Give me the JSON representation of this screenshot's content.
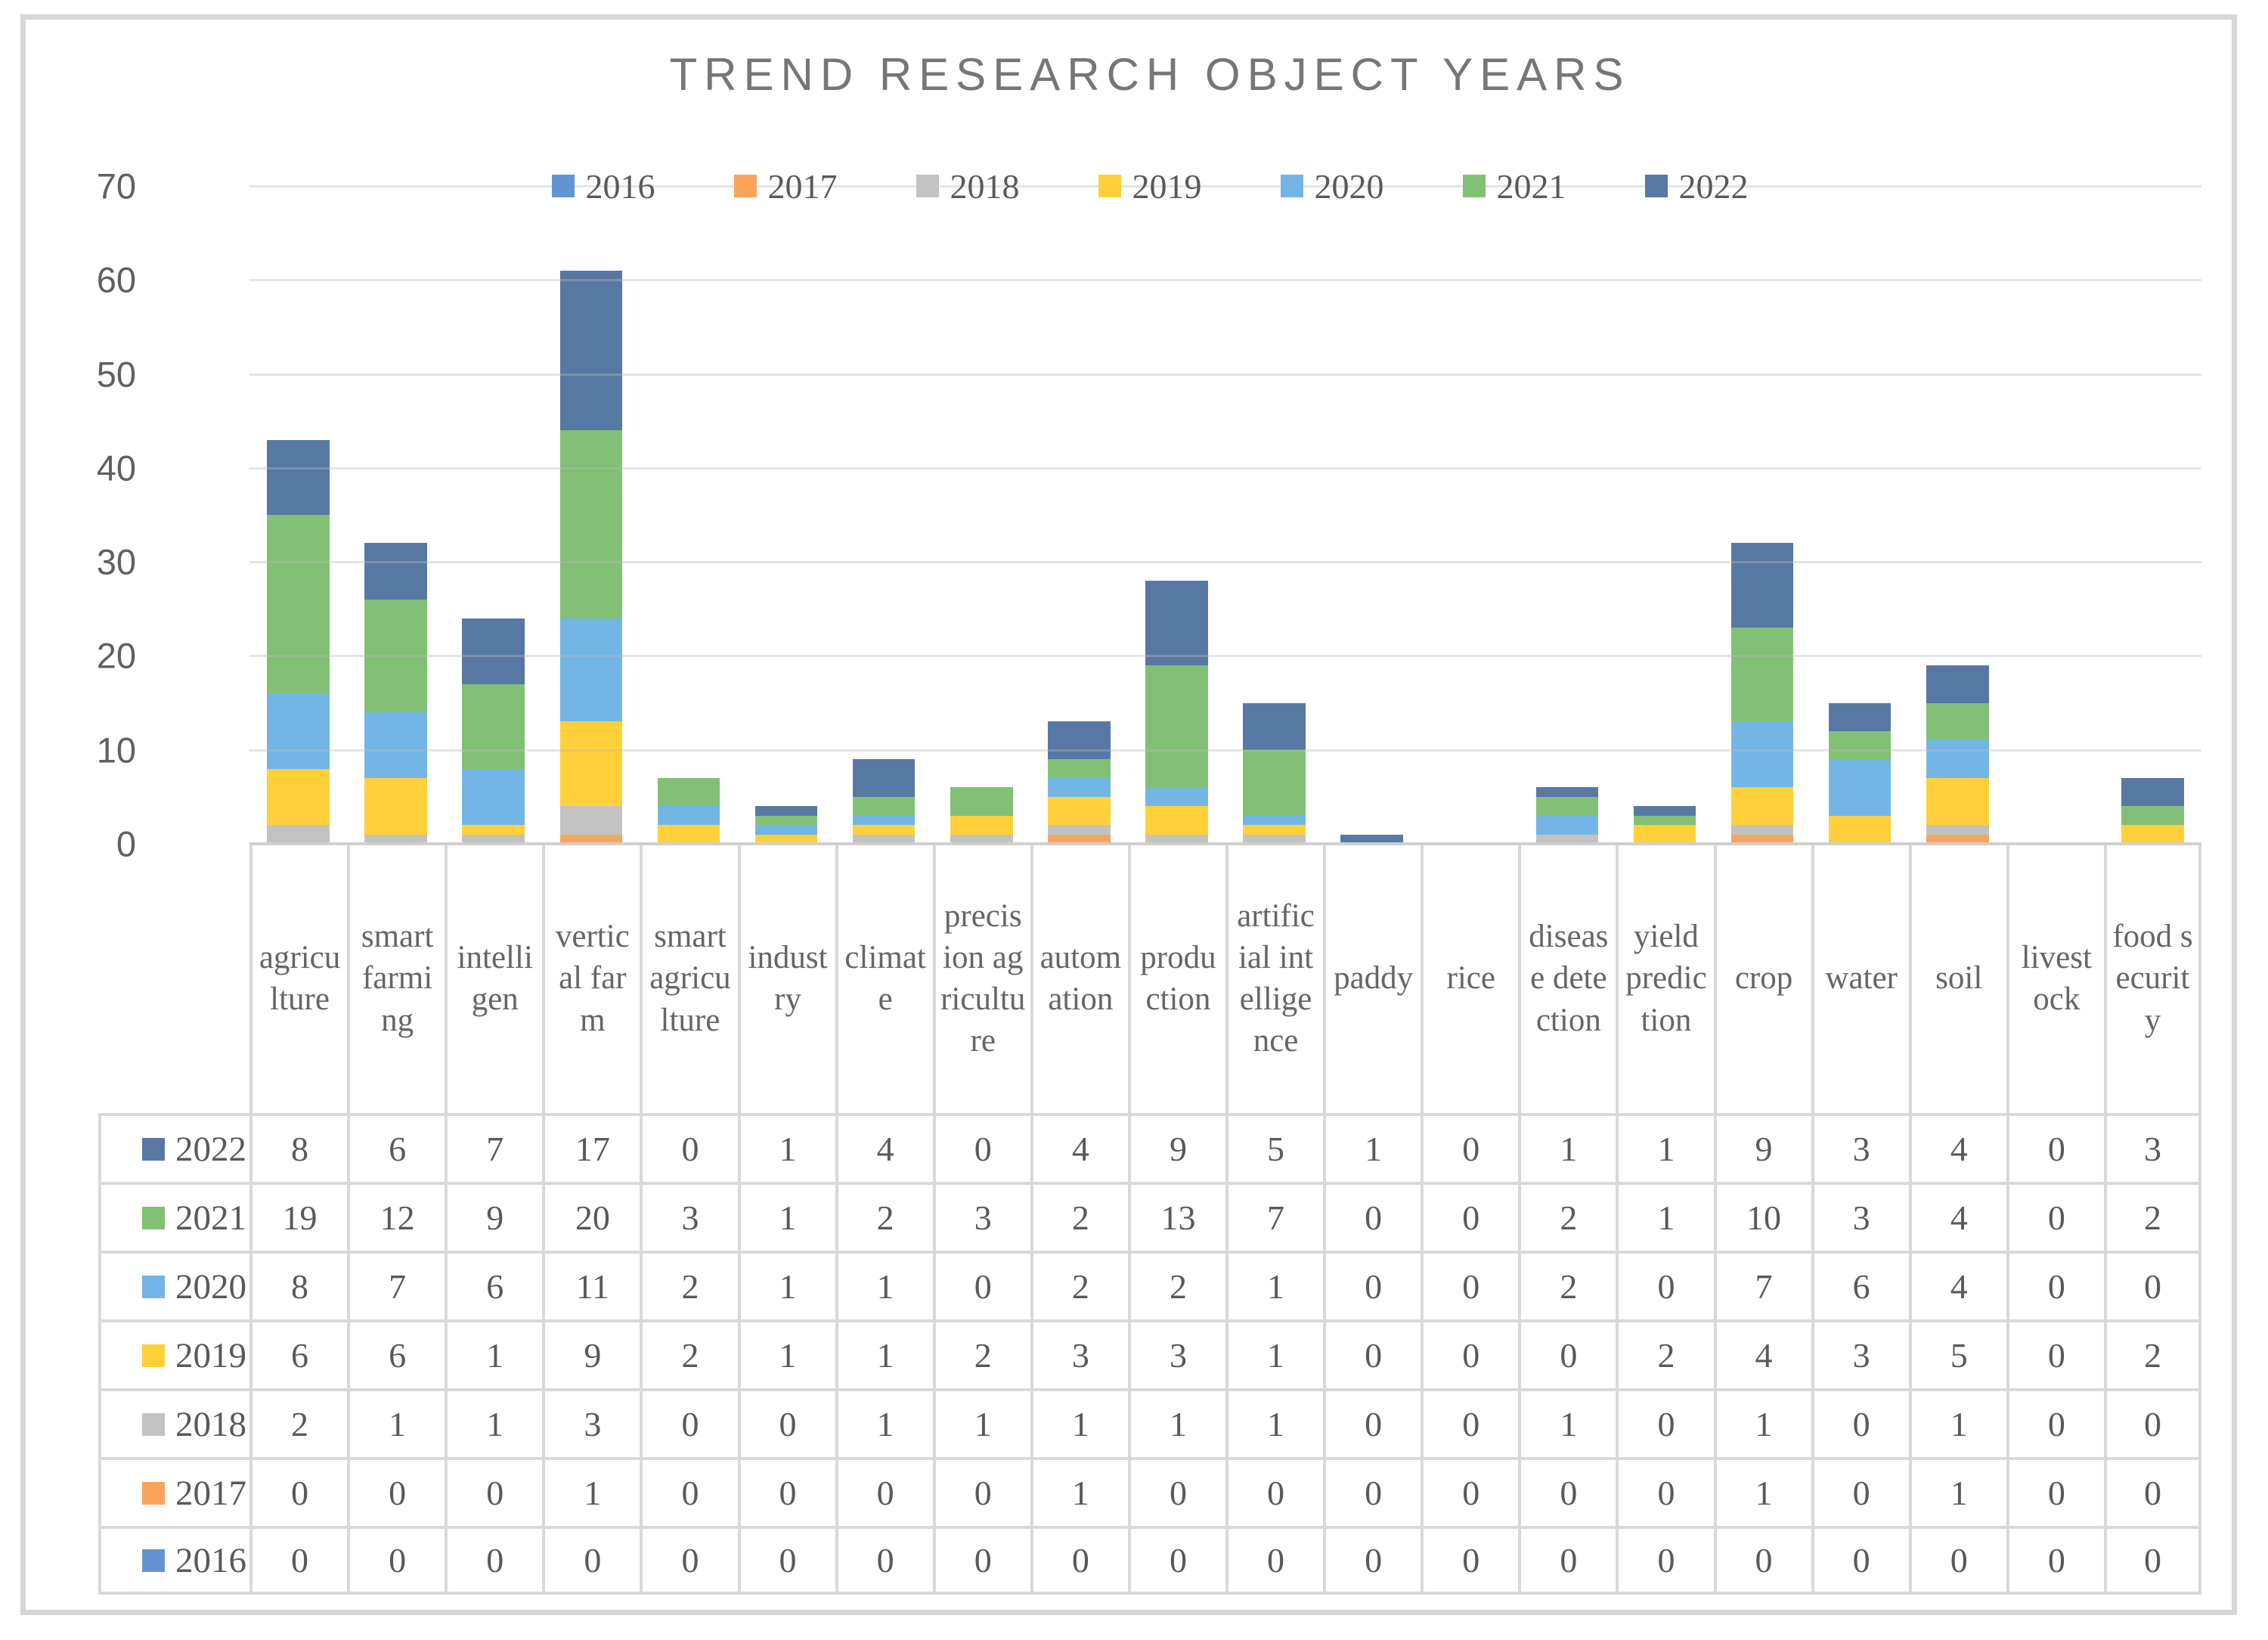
{
  "chart_data": {
    "type": "bar",
    "stacked": true,
    "title": "TREND RESEARCH OBJECT YEARS",
    "legend_position": "top",
    "grid": true,
    "ylim": [
      0,
      70
    ],
    "yticks": [
      0,
      10,
      20,
      30,
      40,
      50,
      60,
      70
    ],
    "categories": [
      "agriculture",
      "smart farming",
      "intelligen",
      "vertical farm",
      "smart agriculture",
      "industry",
      "climate",
      "precision agriculture",
      "automation",
      "production",
      "artificial intelligence",
      "paddy",
      "rice",
      "disease detection",
      "yield prediction",
      "crop",
      "water",
      "soil",
      "livestock",
      "food security"
    ],
    "series": [
      {
        "name": "2016",
        "color": "#6494D3",
        "values": [
          0,
          0,
          0,
          0,
          0,
          0,
          0,
          0,
          0,
          0,
          0,
          0,
          0,
          0,
          0,
          0,
          0,
          0,
          0,
          0
        ]
      },
      {
        "name": "2017",
        "color": "#F9A45C",
        "values": [
          0,
          0,
          0,
          1,
          0,
          0,
          0,
          0,
          1,
          0,
          0,
          0,
          0,
          0,
          0,
          1,
          0,
          1,
          0,
          0
        ]
      },
      {
        "name": "2018",
        "color": "#C2C2C2",
        "values": [
          2,
          1,
          1,
          3,
          0,
          0,
          1,
          1,
          1,
          1,
          1,
          0,
          0,
          1,
          0,
          1,
          0,
          1,
          0,
          0
        ]
      },
      {
        "name": "2019",
        "color": "#FFD03A",
        "values": [
          6,
          6,
          1,
          9,
          2,
          1,
          1,
          2,
          3,
          3,
          1,
          0,
          0,
          0,
          2,
          4,
          3,
          5,
          0,
          2
        ]
      },
      {
        "name": "2020",
        "color": "#73B6E5",
        "values": [
          8,
          7,
          6,
          11,
          2,
          1,
          1,
          0,
          2,
          2,
          1,
          0,
          0,
          2,
          0,
          7,
          6,
          4,
          0,
          0
        ]
      },
      {
        "name": "2021",
        "color": "#82C075",
        "values": [
          19,
          12,
          9,
          20,
          3,
          1,
          2,
          3,
          2,
          13,
          7,
          0,
          0,
          2,
          1,
          10,
          3,
          4,
          0,
          2
        ]
      },
      {
        "name": "2022",
        "color": "#5878A4",
        "values": [
          8,
          6,
          7,
          17,
          0,
          1,
          4,
          0,
          4,
          9,
          5,
          1,
          0,
          1,
          1,
          9,
          3,
          4,
          0,
          3
        ]
      }
    ],
    "table_row_order": [
      "2022",
      "2021",
      "2020",
      "2019",
      "2018",
      "2017",
      "2016"
    ]
  }
}
